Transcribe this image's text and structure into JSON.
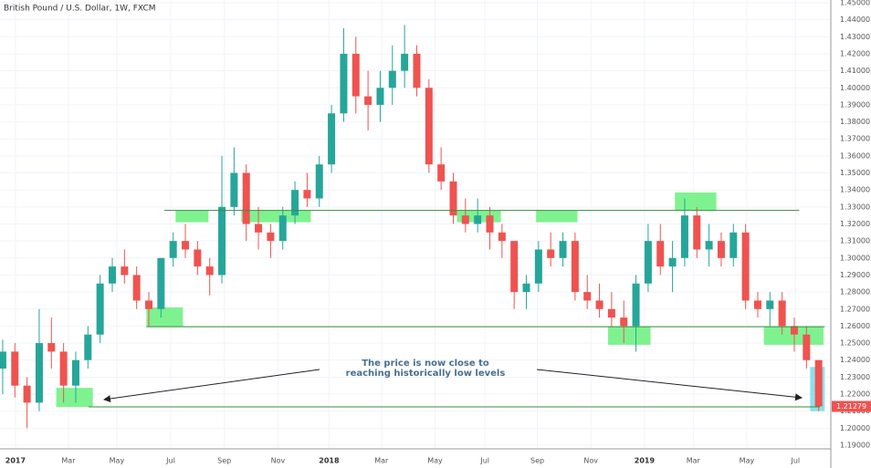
{
  "chart_data": {
    "type": "candlestick",
    "title": "British Pound / U.S. Dollar, 1W, FXCM",
    "x": [
      0,
      1,
      2,
      3,
      4,
      5,
      6,
      7,
      8,
      9,
      10,
      11,
      12,
      13,
      14,
      15,
      16,
      17,
      18,
      19,
      20,
      21,
      22,
      23,
      24,
      25,
      26,
      27,
      28,
      29,
      30,
      31,
      32,
      33,
      34,
      35,
      36,
      37,
      38,
      39,
      40,
      41,
      42,
      43,
      44,
      45,
      46,
      47,
      48,
      49,
      50,
      51,
      52,
      53,
      54,
      55,
      56,
      57,
      58,
      59,
      60,
      61,
      62,
      63,
      64,
      65,
      66,
      67
    ],
    "open": [
      1.235,
      1.245,
      1.225,
      1.215,
      1.25,
      1.245,
      1.225,
      1.24,
      1.255,
      1.285,
      1.295,
      1.29,
      1.275,
      1.27,
      1.3,
      1.31,
      1.305,
      1.295,
      1.29,
      1.33,
      1.35,
      1.32,
      1.315,
      1.31,
      1.325,
      1.34,
      1.335,
      1.355,
      1.385,
      1.42,
      1.395,
      1.39,
      1.4,
      1.41,
      1.42,
      1.4,
      1.355,
      1.345,
      1.325,
      1.32,
      1.325,
      1.315,
      1.31,
      1.28,
      1.285,
      1.305,
      1.3,
      1.31,
      1.28,
      1.275,
      1.27,
      1.265,
      1.26,
      1.285,
      1.31,
      1.295,
      1.3,
      1.325,
      1.305,
      1.31,
      1.3,
      1.315,
      1.275,
      1.27,
      1.275,
      1.26,
      1.255,
      1.24
    ],
    "high": [
      1.252,
      1.25,
      1.23,
      1.27,
      1.265,
      1.25,
      1.245,
      1.26,
      1.29,
      1.3,
      1.305,
      1.295,
      1.28,
      1.3,
      1.315,
      1.32,
      1.31,
      1.3,
      1.36,
      1.365,
      1.355,
      1.33,
      1.32,
      1.33,
      1.345,
      1.35,
      1.36,
      1.39,
      1.435,
      1.43,
      1.41,
      1.41,
      1.425,
      1.437,
      1.425,
      1.405,
      1.365,
      1.35,
      1.335,
      1.335,
      1.33,
      1.32,
      1.31,
      1.29,
      1.31,
      1.315,
      1.315,
      1.315,
      1.29,
      1.285,
      1.28,
      1.275,
      1.29,
      1.32,
      1.32,
      1.31,
      1.335,
      1.33,
      1.32,
      1.315,
      1.32,
      1.32,
      1.28,
      1.28,
      1.28,
      1.265,
      1.26,
      1.24
    ],
    "low": [
      1.22,
      1.218,
      1.2,
      1.21,
      1.235,
      1.215,
      1.215,
      1.235,
      1.25,
      1.28,
      1.285,
      1.27,
      1.26,
      1.265,
      1.295,
      1.3,
      1.29,
      1.278,
      1.285,
      1.325,
      1.31,
      1.305,
      1.3,
      1.305,
      1.32,
      1.33,
      1.33,
      1.35,
      1.38,
      1.385,
      1.375,
      1.38,
      1.39,
      1.4,
      1.395,
      1.35,
      1.34,
      1.32,
      1.315,
      1.315,
      1.305,
      1.3,
      1.27,
      1.27,
      1.28,
      1.295,
      1.295,
      1.275,
      1.27,
      1.265,
      1.26,
      1.25,
      1.245,
      1.28,
      1.29,
      1.28,
      1.295,
      1.3,
      1.295,
      1.295,
      1.295,
      1.27,
      1.265,
      1.26,
      1.255,
      1.245,
      1.235,
      1.21
    ],
    "close": [
      1.245,
      1.225,
      1.215,
      1.25,
      1.245,
      1.225,
      1.24,
      1.255,
      1.285,
      1.295,
      1.29,
      1.275,
      1.27,
      1.3,
      1.31,
      1.305,
      1.295,
      1.29,
      1.33,
      1.35,
      1.32,
      1.315,
      1.31,
      1.325,
      1.34,
      1.335,
      1.355,
      1.385,
      1.42,
      1.395,
      1.39,
      1.4,
      1.41,
      1.42,
      1.4,
      1.355,
      1.345,
      1.325,
      1.32,
      1.325,
      1.315,
      1.31,
      1.28,
      1.285,
      1.305,
      1.3,
      1.31,
      1.28,
      1.275,
      1.27,
      1.265,
      1.26,
      1.285,
      1.31,
      1.295,
      1.3,
      1.325,
      1.305,
      1.31,
      1.3,
      1.315,
      1.275,
      1.27,
      1.275,
      1.26,
      1.255,
      1.24,
      1.21279
    ],
    "up_color": "#26a69a",
    "down_color": "#ef5350",
    "xlim": [
      -0.22,
      68
    ],
    "ylim": [
      1.19,
      1.45
    ],
    "xticks": [
      {
        "value": 1.05,
        "label": "2017"
      },
      {
        "value": 5.4,
        "label": "Mar"
      },
      {
        "value": 9.37,
        "label": "May"
      },
      {
        "value": 13.8,
        "label": "Jul"
      },
      {
        "value": 18.2,
        "label": "Sep"
      },
      {
        "value": 22.6,
        "label": "Nov"
      },
      {
        "value": 26.8,
        "label": "2018"
      },
      {
        "value": 31.1,
        "label": "Mar"
      },
      {
        "value": 35.5,
        "label": "May"
      },
      {
        "value": 39.6,
        "label": "Jul"
      },
      {
        "value": 43.9,
        "label": "Sep"
      },
      {
        "value": 48.3,
        "label": "Nov"
      },
      {
        "value": 52.7,
        "label": "2019"
      },
      {
        "value": 56.7,
        "label": "Mar"
      },
      {
        "value": 61.1,
        "label": "May"
      },
      {
        "value": 65.1,
        "label": "Jul"
      }
    ],
    "yticks": [
      {
        "value": 1.19,
        "label": "1.19000"
      },
      {
        "value": 1.2,
        "label": "1.20000"
      },
      {
        "value": 1.21,
        "label": "1.21000"
      },
      {
        "value": 1.22,
        "label": "1.22000"
      },
      {
        "value": 1.23,
        "label": "1.23000"
      },
      {
        "value": 1.24,
        "label": "1.24000"
      },
      {
        "value": 1.25,
        "label": "1.25000"
      },
      {
        "value": 1.26,
        "label": "1.26000"
      },
      {
        "value": 1.27,
        "label": "1.27000"
      },
      {
        "value": 1.28,
        "label": "1.28000"
      },
      {
        "value": 1.29,
        "label": "1.29000"
      },
      {
        "value": 1.3,
        "label": "1.30000"
      },
      {
        "value": 1.31,
        "label": "1.31000"
      },
      {
        "value": 1.32,
        "label": "1.32000"
      },
      {
        "value": 1.33,
        "label": "1.33000"
      },
      {
        "value": 1.34,
        "label": "1.34000"
      },
      {
        "value": 1.35,
        "label": "1.35000"
      },
      {
        "value": 1.36,
        "label": "1.36000"
      },
      {
        "value": 1.37,
        "label": "1.37000"
      },
      {
        "value": 1.38,
        "label": "1.38000"
      },
      {
        "value": 1.39,
        "label": "1.39000"
      },
      {
        "value": 1.4,
        "label": "1.40000"
      },
      {
        "value": 1.41,
        "label": "1.41000"
      },
      {
        "value": 1.42,
        "label": "1.42000"
      },
      {
        "value": 1.43,
        "label": "1.43000"
      },
      {
        "value": 1.44,
        "label": "1.44000"
      },
      {
        "value": 1.45,
        "label": "1.45000"
      }
    ],
    "grid": true,
    "levels": [
      {
        "value": 1.328,
        "x": [
          13.27,
          65.4
        ]
      },
      {
        "value": 1.2596,
        "x": [
          11.8,
          67.5
        ]
      },
      {
        "value": 1.2125,
        "x": [
          7.05,
          67.1
        ]
      }
    ],
    "level_color": "#388e3c",
    "zones": [
      {
        "x": [
          14.2,
          16.9
        ],
        "y": [
          1.321,
          1.328
        ]
      },
      {
        "x": [
          19.6,
          25.3
        ],
        "y": [
          1.321,
          1.328
        ]
      },
      {
        "x": [
          11.8,
          14.8
        ],
        "y": [
          1.2596,
          1.271
        ]
      },
      {
        "x": [
          4.4,
          7.4
        ],
        "y": [
          1.2125,
          1.2237
        ]
      },
      {
        "x": [
          37.3,
          40.9
        ],
        "y": [
          1.321,
          1.328
        ]
      },
      {
        "x": [
          43.8,
          47.2
        ],
        "y": [
          1.321,
          1.328
        ]
      },
      {
        "x": [
          49.7,
          53.2
        ],
        "y": [
          1.249,
          1.2596
        ]
      },
      {
        "x": [
          55.2,
          58.6
        ],
        "y": [
          1.328,
          1.3385
        ]
      },
      {
        "x": [
          62.5,
          67.4
        ],
        "y": [
          1.249,
          1.2596
        ]
      }
    ],
    "zone_color": "#69f07c",
    "highlight": {
      "x": [
        66.3,
        67.5
      ],
      "y": [
        1.21,
        1.236
      ],
      "color": "#80deea"
    },
    "annotation": [
      "The price is now close to",
      "reaching historically low levels"
    ]
  }
}
